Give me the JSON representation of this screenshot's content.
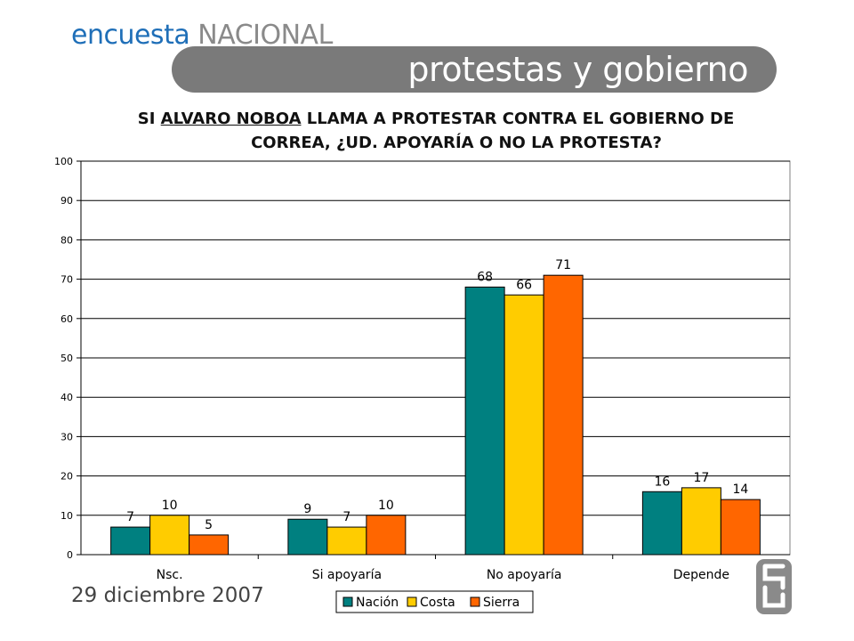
{
  "header": {
    "brand_first": "encuesta",
    "brand_second": "NACIONAL",
    "banner_title": "protestas y gobierno"
  },
  "question": {
    "lead": "SI ",
    "underlined": "ALVARO NOBOA",
    "rest_line1": " LLAMA A PROTESTAR CONTRA EL GOBIERNO DE",
    "line2": "CORREA, ¿UD. APOYARÍA O NO LA PROTESTA?"
  },
  "footer": {
    "date": "29 diciembre 2007"
  },
  "colors": {
    "brand_blue": "#1f6fb8",
    "banner_gray": "#7a7a7a",
    "nacion": "#008080",
    "costa": "#ffcc00",
    "sierra": "#ff6600"
  },
  "chart_data": {
    "type": "bar",
    "categories": [
      "Nsc.",
      "Si apoyaría",
      "No apoyaría",
      "Depende"
    ],
    "series": [
      {
        "name": "Nación",
        "color": "#008080",
        "values": [
          7,
          9,
          68,
          16
        ]
      },
      {
        "name": "Costa",
        "color": "#ffcc00",
        "values": [
          10,
          7,
          66,
          17
        ]
      },
      {
        "name": "Sierra",
        "color": "#ff6600",
        "values": [
          5,
          10,
          71,
          14
        ]
      }
    ],
    "ylim": [
      0,
      100
    ],
    "yticks": [
      0,
      10,
      20,
      30,
      40,
      50,
      60,
      70,
      80,
      90,
      100
    ],
    "grid": true,
    "legend": "bottom",
    "data_labels": true
  }
}
